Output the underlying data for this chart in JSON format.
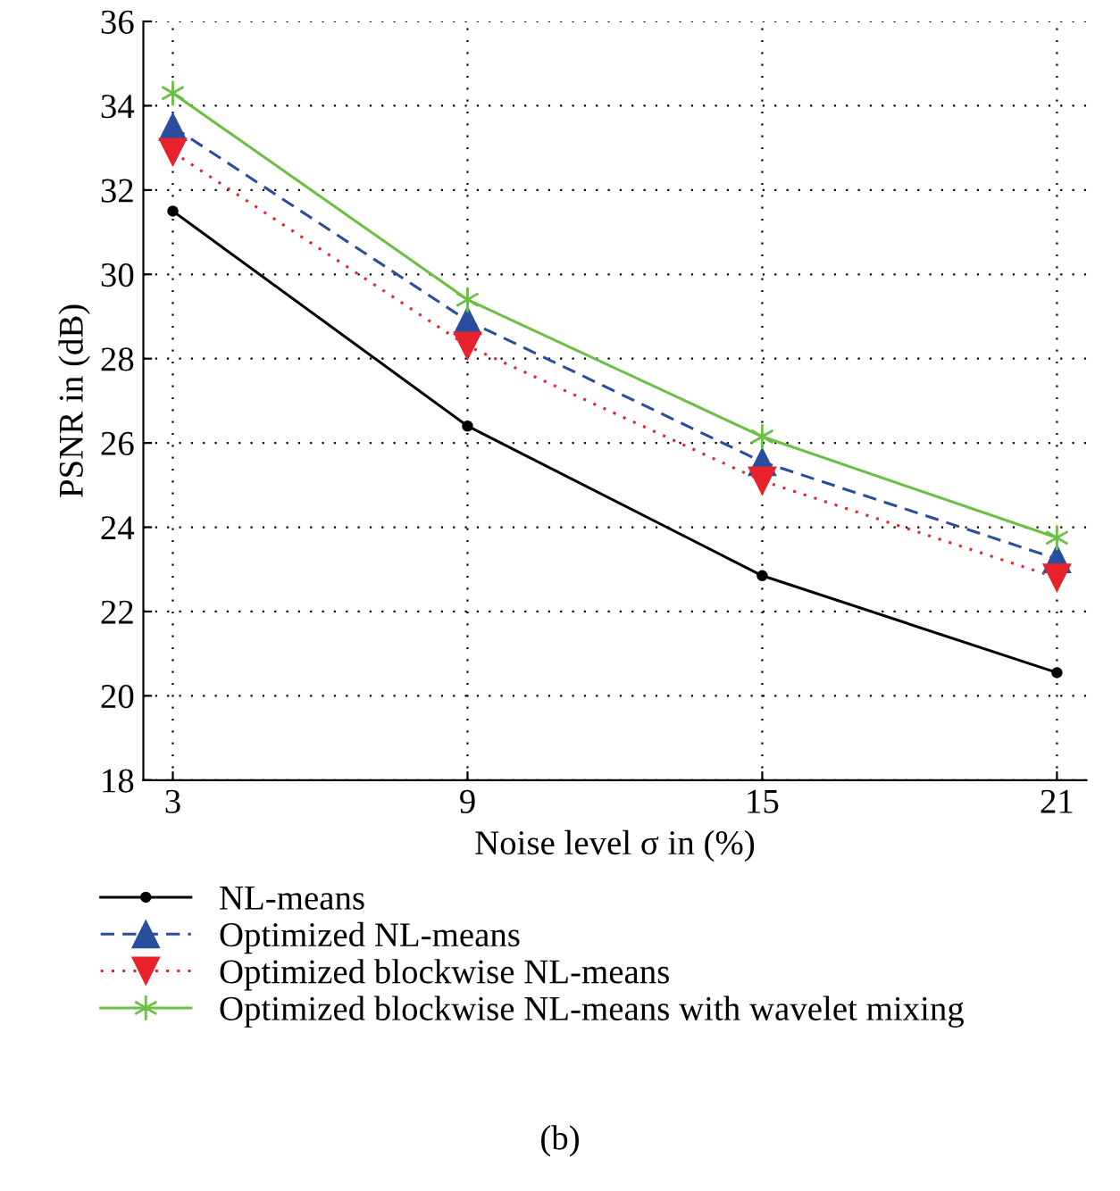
{
  "chart_data": {
    "type": "line",
    "xlabel": "Noise level σ in (%)",
    "ylabel": "PSNR in (dB)",
    "x": [
      3,
      9,
      15,
      21
    ],
    "xlim": [
      2.4,
      21.6
    ],
    "xticks": [
      3,
      9,
      15,
      21
    ],
    "ylim": [
      18,
      36
    ],
    "yticks": [
      18,
      20,
      22,
      24,
      26,
      28,
      30,
      32,
      34,
      36
    ],
    "grid": true,
    "legend": "bottom",
    "annotations": [
      "(b)"
    ],
    "series": [
      {
        "name": "NL-means",
        "color": "#000000",
        "values": [
          31.5,
          26.4,
          22.85,
          20.55
        ],
        "marker": "circle",
        "line_style": "solid"
      },
      {
        "name": "Optimized NL-means",
        "color": "#2a4d9e",
        "values": [
          33.5,
          28.9,
          25.55,
          23.25
        ],
        "marker": "triangle",
        "line_style": "dashed"
      },
      {
        "name": "Optimized blockwise NL-means",
        "color": "#e8222a",
        "values": [
          32.9,
          28.3,
          25.1,
          22.8
        ],
        "marker": "triangle_down",
        "line_style": "dotted"
      },
      {
        "name": "Optimized blockwise NL-means with wavelet mixing",
        "color": "#6cbf45",
        "values": [
          34.3,
          29.4,
          26.15,
          23.75
        ],
        "marker": "cross",
        "line_style": "solid"
      }
    ]
  }
}
